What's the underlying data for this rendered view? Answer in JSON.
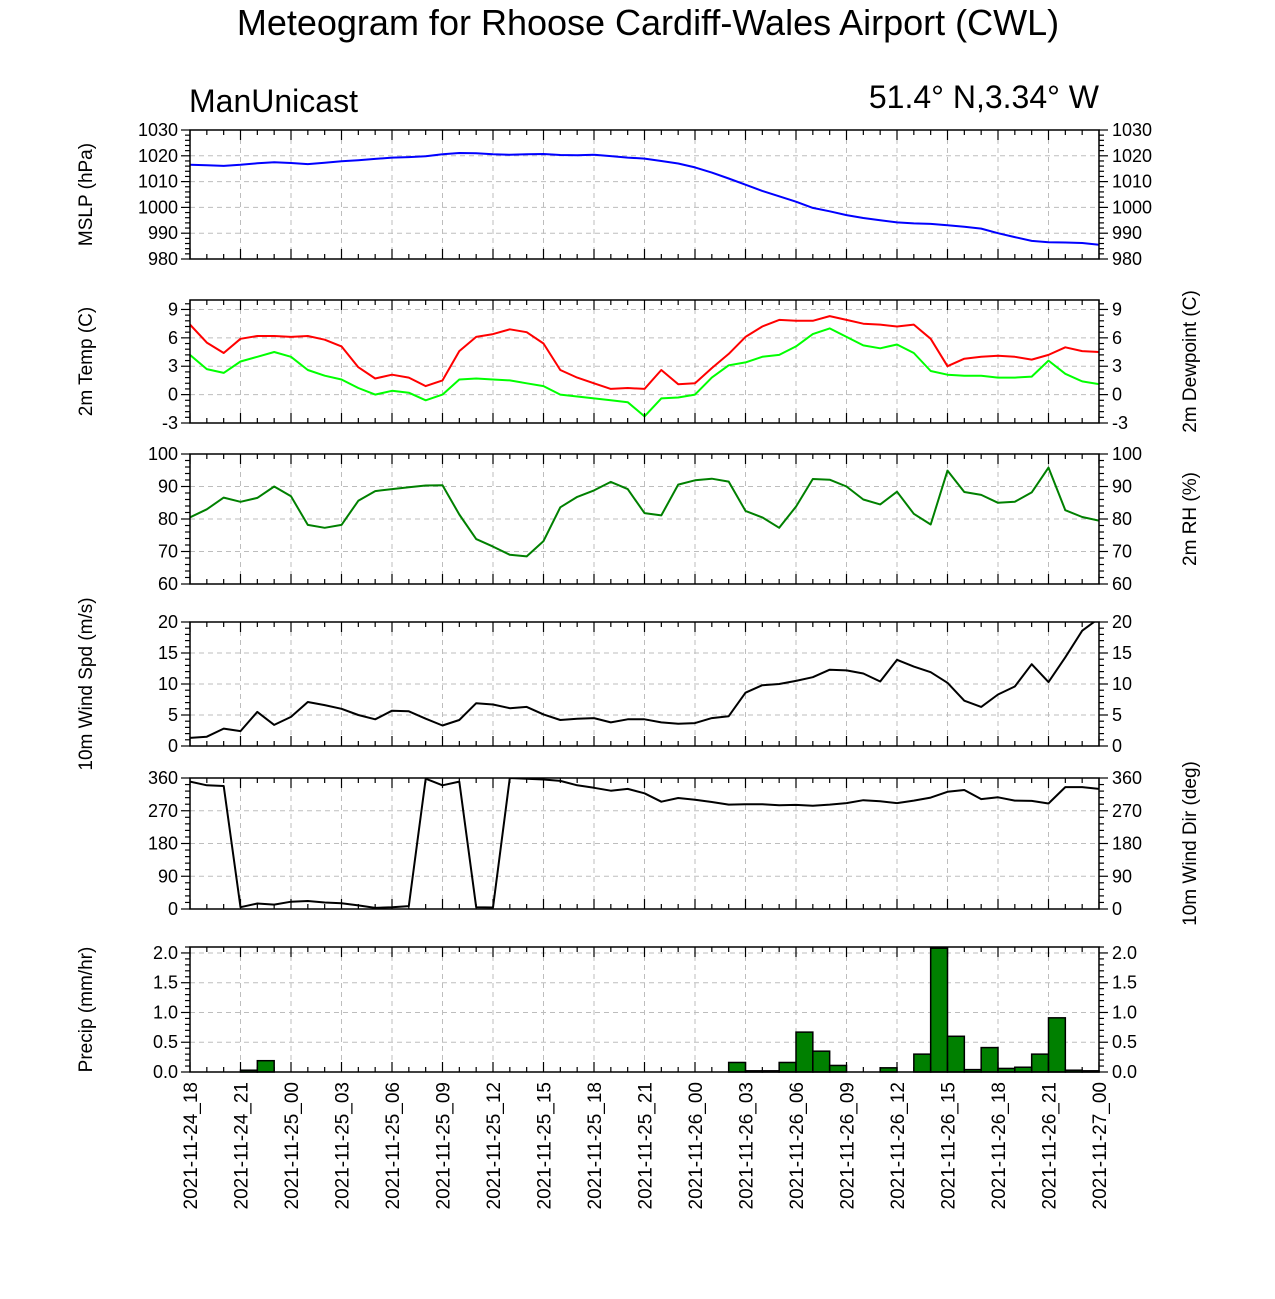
{
  "page": {
    "title": "Meteogram for Rhoose Cardiff-Wales Airport (CWL)",
    "left_label": "ManUnicast",
    "right_label": "51.4° N,3.34° W"
  },
  "chart_data": {
    "type": "line",
    "x_ticks": [
      "2021-11-24_18",
      "2021-11-24_21",
      "2021-11-25_00",
      "2021-11-25_03",
      "2021-11-25_06",
      "2021-11-25_09",
      "2021-11-25_12",
      "2021-11-25_15",
      "2021-11-25_18",
      "2021-11-25_21",
      "2021-11-26_00",
      "2021-11-26_03",
      "2021-11-26_06",
      "2021-11-26_09",
      "2021-11-26_12",
      "2021-11-26_15",
      "2021-11-26_18",
      "2021-11-26_21",
      "2021-11-27_00"
    ],
    "x_range_hours": [
      0,
      54
    ],
    "grid": true,
    "panels": [
      {
        "id": "mslp",
        "ylabel_left": "MSLP (hPa)",
        "ylabel_right": "",
        "ylim": [
          980,
          1030
        ],
        "yticks": [
          980,
          990,
          1000,
          1010,
          1020,
          1030
        ],
        "tick_labels_right": true,
        "series": [
          {
            "color": "#0000ff",
            "kind": "line",
            "x": [
              0,
              1,
              2,
              3,
              4,
              5,
              6,
              7,
              8,
              9,
              10,
              11,
              12,
              13,
              14,
              15,
              16,
              17,
              18,
              19,
              20,
              21,
              22,
              23,
              24,
              25,
              26,
              27,
              28,
              29,
              30,
              31,
              32,
              33,
              34,
              35,
              36,
              37,
              38,
              39,
              40,
              41,
              42,
              43,
              44,
              45,
              46,
              47,
              48,
              49,
              50,
              51,
              52,
              53,
              54
            ],
            "y": [
              1016.5,
              1016.3,
              1016.1,
              1016.5,
              1017.1,
              1017.5,
              1017.2,
              1016.8,
              1017.3,
              1017.9,
              1018.3,
              1018.8,
              1019.3,
              1019.5,
              1019.8,
              1020.6,
              1021.1,
              1021.0,
              1020.6,
              1020.4,
              1020.6,
              1020.7,
              1020.3,
              1020.2,
              1020.4,
              1019.9,
              1019.3,
              1018.9,
              1018.0,
              1017.0,
              1015.5,
              1013.5,
              1011.2,
              1008.8,
              1006.4,
              1004.3,
              1002.2,
              999.8,
              998.5,
              997.0,
              995.9,
              995.0,
              994.2,
              993.8,
              993.6,
              993.1,
              992.5,
              991.8,
              990.0,
              988.5,
              987.0,
              986.5,
              986.4,
              986.2,
              985.5
            ]
          }
        ]
      },
      {
        "id": "temp",
        "ylabel_left": "2m Temp (C)",
        "ylabel_right": "2m Dewpoint (C)",
        "ylim": [
          -3,
          10
        ],
        "yticks": [
          -3,
          0,
          3,
          6,
          9
        ],
        "tick_labels_right": true,
        "series": [
          {
            "color": "#ff0000",
            "kind": "line",
            "x": [
              0,
              1,
              2,
              3,
              4,
              5,
              6,
              7,
              8,
              9,
              10,
              11,
              12,
              13,
              14,
              15,
              16,
              17,
              18,
              19,
              20,
              21,
              22,
              23,
              24,
              25,
              26,
              27,
              28,
              29,
              30,
              31,
              32,
              33,
              34,
              35,
              36,
              37,
              38,
              39,
              40,
              41,
              42,
              43,
              44,
              45,
              46,
              47,
              48,
              49,
              50,
              51,
              52,
              53,
              54
            ],
            "y": [
              7.4,
              5.5,
              4.4,
              5.9,
              6.2,
              6.2,
              6.1,
              6.2,
              5.8,
              5.1,
              2.9,
              1.7,
              2.1,
              1.8,
              0.9,
              1.5,
              4.6,
              6.1,
              6.4,
              6.9,
              6.6,
              5.4,
              2.6,
              1.8,
              1.2,
              0.6,
              0.7,
              0.6,
              2.6,
              1.1,
              1.2,
              2.8,
              4.3,
              6.1,
              7.2,
              7.9,
              7.8,
              7.8,
              8.3,
              7.9,
              7.5,
              7.4,
              7.2,
              7.4,
              5.9,
              3.0,
              3.8,
              4.0,
              4.1,
              4.0,
              3.7,
              4.2,
              5.0,
              4.6,
              4.5
            ]
          },
          {
            "color": "#00ff00",
            "kind": "line",
            "x": [
              0,
              1,
              2,
              3,
              4,
              5,
              6,
              7,
              8,
              9,
              10,
              11,
              12,
              13,
              14,
              15,
              16,
              17,
              18,
              19,
              20,
              21,
              22,
              23,
              24,
              25,
              26,
              27,
              28,
              29,
              30,
              31,
              32,
              33,
              34,
              35,
              36,
              37,
              38,
              39,
              40,
              41,
              42,
              43,
              44,
              45,
              46,
              47,
              48,
              49,
              50,
              51,
              52,
              53,
              54
            ],
            "y": [
              4.2,
              2.7,
              2.3,
              3.5,
              4.0,
              4.5,
              4.0,
              2.6,
              2.0,
              1.6,
              0.7,
              0.0,
              0.4,
              0.2,
              -0.6,
              0.0,
              1.6,
              1.7,
              1.6,
              1.5,
              1.2,
              0.9,
              0.0,
              -0.2,
              -0.4,
              -0.6,
              -0.8,
              -2.3,
              -0.4,
              -0.3,
              0.0,
              1.8,
              3.1,
              3.4,
              4.0,
              4.2,
              5.1,
              6.4,
              7.0,
              6.1,
              5.2,
              4.9,
              5.3,
              4.4,
              2.5,
              2.1,
              2.0,
              2.0,
              1.8,
              1.8,
              1.9,
              3.6,
              2.2,
              1.4,
              1.1
            ]
          }
        ]
      },
      {
        "id": "rh",
        "ylabel_left": "",
        "ylabel_right": "2m RH (%)",
        "ylim": [
          60,
          100
        ],
        "yticks": [
          60,
          70,
          80,
          90,
          100
        ],
        "tick_labels_right": true,
        "series": [
          {
            "color": "#008000",
            "kind": "line",
            "x": [
              0,
              1,
              2,
              3,
              4,
              5,
              6,
              7,
              8,
              9,
              10,
              11,
              12,
              13,
              14,
              15,
              16,
              17,
              18,
              19,
              20,
              21,
              22,
              23,
              24,
              25,
              26,
              27,
              28,
              29,
              30,
              31,
              32,
              33,
              34,
              35,
              36,
              37,
              38,
              39,
              40,
              41,
              42,
              43,
              44,
              45,
              46,
              47,
              48,
              49,
              50,
              51,
              52,
              53,
              54
            ],
            "y": [
              80.5,
              83.0,
              86.6,
              85.3,
              86.5,
              90.0,
              87.0,
              78.2,
              77.3,
              78.2,
              85.6,
              88.6,
              89.2,
              89.8,
              90.3,
              90.4,
              81.4,
              73.8,
              71.5,
              69.0,
              68.5,
              73.2,
              83.6,
              86.8,
              88.8,
              91.4,
              89.2,
              81.8,
              81.1,
              90.6,
              91.9,
              92.4,
              91.5,
              82.5,
              80.5,
              77.3,
              83.8,
              92.3,
              92.1,
              90.0,
              86.0,
              84.5,
              88.4,
              81.6,
              78.3,
              94.9,
              88.3,
              87.4,
              85.0,
              85.3,
              88.2,
              95.8,
              82.7,
              80.6,
              79.5
            ]
          }
        ]
      },
      {
        "id": "wspd",
        "ylabel_left": "10m Wind Spd (m/s)",
        "ylabel_right": "",
        "ylim": [
          0,
          20
        ],
        "yticks": [
          0,
          5,
          10,
          15,
          20
        ],
        "tick_labels_right": true,
        "series": [
          {
            "color": "#000000",
            "kind": "line",
            "x": [
              0,
              1,
              2,
              3,
              4,
              5,
              6,
              7,
              8,
              9,
              10,
              11,
              12,
              13,
              14,
              15,
              16,
              17,
              18,
              19,
              20,
              21,
              22,
              23,
              24,
              25,
              26,
              27,
              28,
              29,
              30,
              31,
              32,
              33,
              34,
              35,
              36,
              37,
              38,
              39,
              40,
              41,
              42,
              43,
              44,
              45,
              46,
              47,
              48,
              49,
              50,
              51,
              52,
              53,
              54
            ],
            "y": [
              1.3,
              1.5,
              2.8,
              2.4,
              5.5,
              3.4,
              4.7,
              7.1,
              6.6,
              6.0,
              5.0,
              4.3,
              5.7,
              5.6,
              4.4,
              3.3,
              4.2,
              6.9,
              6.7,
              6.1,
              6.3,
              5.1,
              4.2,
              4.4,
              4.5,
              3.8,
              4.3,
              4.3,
              3.8,
              3.6,
              3.7,
              4.5,
              4.8,
              8.6,
              9.8,
              10.0,
              10.5,
              11.1,
              12.3,
              12.2,
              11.7,
              10.4,
              13.9,
              12.8,
              11.9,
              10.2,
              7.3,
              6.3,
              8.3,
              9.6,
              13.2,
              10.3,
              14.3,
              18.6,
              20.6
            ]
          }
        ]
      },
      {
        "id": "wdir",
        "ylabel_left": "",
        "ylabel_right": "10m Wind Dir (deg)",
        "ylim": [
          0,
          360
        ],
        "yticks": [
          0,
          90,
          180,
          270,
          360
        ],
        "tick_labels_right": true,
        "series": [
          {
            "color": "#000000",
            "kind": "line",
            "x": [
              0,
              1,
              2,
              3,
              4,
              5,
              6,
              7,
              8,
              9,
              10,
              11,
              12,
              13,
              14,
              15,
              16,
              17,
              18,
              19,
              20,
              21,
              22,
              23,
              24,
              25,
              26,
              27,
              28,
              29,
              30,
              31,
              32,
              33,
              34,
              35,
              36,
              37,
              38,
              39,
              40,
              41,
              42,
              43,
              44,
              45,
              46,
              47,
              48,
              49,
              50,
              51,
              52,
              53,
              54
            ],
            "y": [
              350,
              340,
              338,
              5,
              15,
              12,
              20,
              22,
              18,
              16,
              10,
              3,
              5,
              8,
              358,
              340,
              350,
              5,
              4,
              360,
              358,
              356,
              352,
              340,
              333,
              325,
              330,
              318,
              295,
              305,
              300,
              294,
              287,
              288,
              288,
              285,
              286,
              284,
              287,
              291,
              299,
              296,
              291,
              298,
              306,
              322,
              327,
              302,
              307,
              298,
              297,
              290,
              335,
              335,
              330
            ]
          }
        ]
      },
      {
        "id": "precip",
        "ylabel_left": "Precip (mm/hr)",
        "ylabel_right": "",
        "ylim": [
          0,
          2.1
        ],
        "yticks": [
          0.0,
          0.5,
          1.0,
          1.5,
          2.0
        ],
        "tick_format": "0.0",
        "tick_labels_right": true,
        "series": [
          {
            "color": "#008000",
            "kind": "bar",
            "x": [
              0,
              1,
              2,
              3,
              4,
              5,
              6,
              7,
              8,
              9,
              10,
              11,
              12,
              13,
              14,
              15,
              16,
              17,
              18,
              19,
              20,
              21,
              22,
              23,
              24,
              25,
              26,
              27,
              28,
              29,
              30,
              31,
              32,
              33,
              34,
              35,
              36,
              37,
              38,
              39,
              40,
              41,
              42,
              43,
              44,
              45,
              46,
              47,
              48,
              49,
              50,
              51,
              52,
              53
            ],
            "y": [
              0,
              0,
              0,
              0.03,
              0.19,
              0,
              0,
              0,
              0,
              0,
              0,
              0,
              0,
              0,
              0,
              0,
              0,
              0,
              0,
              0,
              0,
              0,
              0,
              0,
              0,
              0,
              0,
              0,
              0,
              0,
              0,
              0,
              0.16,
              0.02,
              0.02,
              0.16,
              0.67,
              0.35,
              0.11,
              0,
              0,
              0.07,
              0,
              0.3,
              2.08,
              0.6,
              0.04,
              0.41,
              0.06,
              0.08,
              0.3,
              0.91,
              0.03,
              0.02
            ]
          }
        ]
      }
    ]
  }
}
